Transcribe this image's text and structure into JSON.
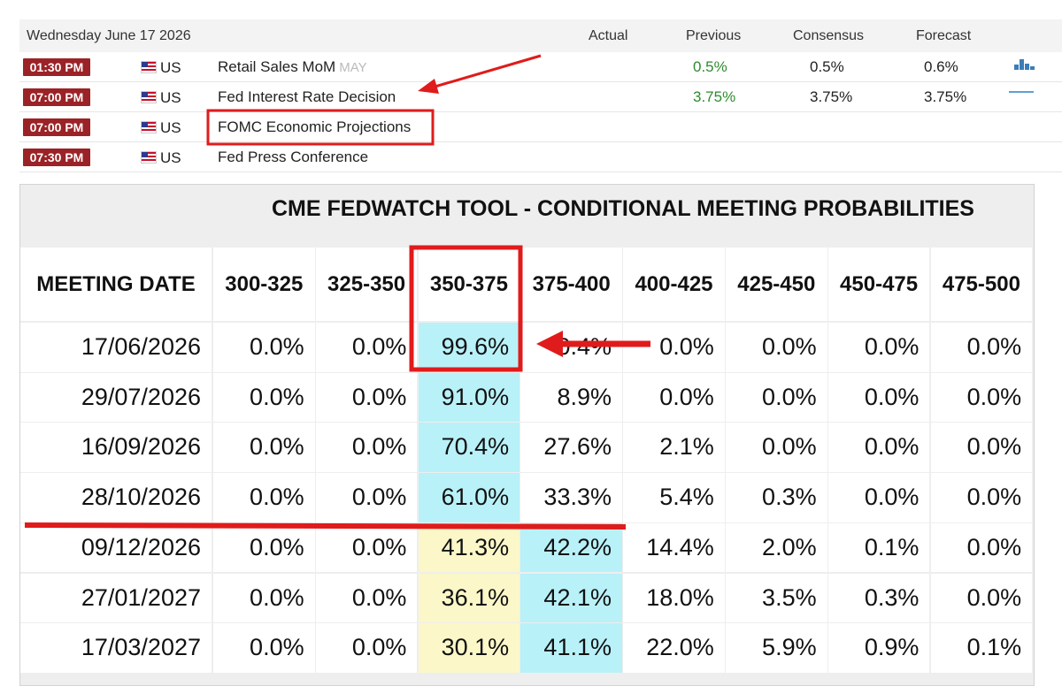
{
  "calendar": {
    "date": "Wednesday June 17 2026",
    "columns": {
      "actual": "Actual",
      "previous": "Previous",
      "consensus": "Consensus",
      "forecast": "Forecast"
    },
    "rows": [
      {
        "time": "01:30 PM",
        "country": "US",
        "event": "Retail Sales MoM",
        "period": "MAY",
        "actual": "",
        "previous": "0.5%",
        "consensus": "0.5%",
        "forecast": "0.6%",
        "chart_icon": "mini-bar-chart-icon"
      },
      {
        "time": "07:00 PM",
        "country": "US",
        "event": "Fed Interest Rate Decision",
        "period": "",
        "actual": "",
        "previous": "3.75%",
        "consensus": "3.75%",
        "forecast": "3.75%",
        "chart_icon": "mini-line-chart-icon"
      },
      {
        "time": "07:00 PM",
        "country": "US",
        "event": "FOMC Economic Projections",
        "period": "",
        "actual": "",
        "previous": "",
        "consensus": "",
        "forecast": ""
      },
      {
        "time": "07:30 PM",
        "country": "US",
        "event": "Fed Press Conference",
        "period": "",
        "actual": "",
        "previous": "",
        "consensus": "",
        "forecast": ""
      }
    ],
    "colors": {
      "time_badge": "#9b2226",
      "positive": "#2e8b2e",
      "flag_icon": "us-flag-icon"
    }
  },
  "fedwatch": {
    "title": "CME FEDWATCH TOOL - CONDITIONAL MEETING PROBABILITIES",
    "date_header": "MEETING DATE",
    "ranges": [
      "300-325",
      "325-350",
      "350-375",
      "375-400",
      "400-425",
      "425-450",
      "450-475",
      "475-500"
    ],
    "rows": [
      {
        "date": "17/06/2026",
        "values": [
          "0.0%",
          "0.0%",
          "99.6%",
          "0.4%",
          "0.0%",
          "0.0%",
          "0.0%",
          "0.0%"
        ],
        "highlight": [
          2
        ]
      },
      {
        "date": "29/07/2026",
        "values": [
          "0.0%",
          "0.0%",
          "91.0%",
          "8.9%",
          "0.0%",
          "0.0%",
          "0.0%",
          "0.0%"
        ],
        "highlight": [
          2
        ]
      },
      {
        "date": "16/09/2026",
        "values": [
          "0.0%",
          "0.0%",
          "70.4%",
          "27.6%",
          "2.1%",
          "0.0%",
          "0.0%",
          "0.0%"
        ],
        "highlight": [
          2
        ]
      },
      {
        "date": "28/10/2026",
        "values": [
          "0.0%",
          "0.0%",
          "61.0%",
          "33.3%",
          "5.4%",
          "0.3%",
          "0.0%",
          "0.0%"
        ],
        "highlight": [
          2
        ]
      },
      {
        "date": "09/12/2026",
        "values": [
          "0.0%",
          "0.0%",
          "41.3%",
          "42.2%",
          "14.4%",
          "2.0%",
          "0.1%",
          "0.0%"
        ],
        "highlight": [
          3
        ],
        "second": [
          2
        ]
      },
      {
        "date": "27/01/2027",
        "values": [
          "0.0%",
          "0.0%",
          "36.1%",
          "42.1%",
          "18.0%",
          "3.5%",
          "0.3%",
          "0.0%"
        ],
        "highlight": [
          3
        ],
        "second": [
          2
        ]
      },
      {
        "date": "17/03/2027",
        "values": [
          "0.0%",
          "0.0%",
          "30.1%",
          "41.1%",
          "22.0%",
          "5.9%",
          "0.9%",
          "0.1%"
        ],
        "highlight": [
          3
        ],
        "second": [
          2
        ]
      }
    ],
    "colors": {
      "highlight": "#b9f1f8",
      "second": "#fbf7c8",
      "annotation": "#e01b1b"
    }
  }
}
